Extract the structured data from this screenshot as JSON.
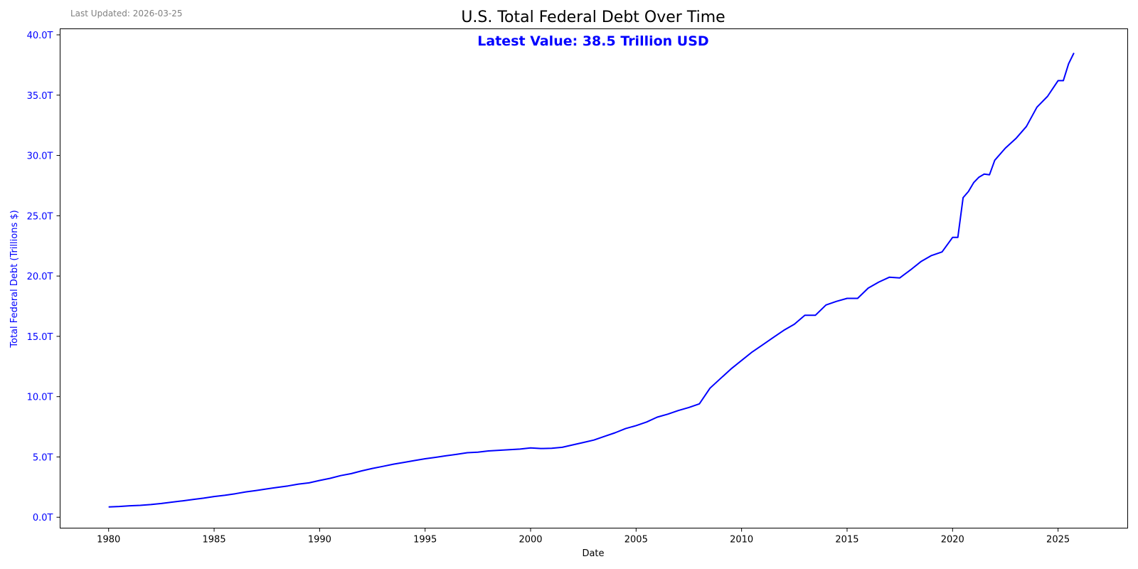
{
  "header": {
    "last_updated": "Last Updated: 2026-03-25"
  },
  "chart_data": {
    "type": "line",
    "title": "U.S. Total Federal Debt Over Time",
    "annotation": "Latest Value: 38.5 Trillion USD",
    "xlabel": "Date",
    "ylabel": "Total Federal Debt (Trillions $)",
    "x_ticks": [
      "1980",
      "1985",
      "1990",
      "1995",
      "2000",
      "2005",
      "2010",
      "2015",
      "2020",
      "2025"
    ],
    "y_ticks": [
      "0.0T",
      "5.0T",
      "10.0T",
      "15.0T",
      "20.0T",
      "25.0T",
      "30.0T",
      "35.0T",
      "40.0T"
    ],
    "xlim": [
      1977.7,
      2028.3
    ],
    "ylim": [
      -0.9,
      40.5
    ],
    "grid": false,
    "line_color": "#0000ff",
    "accent_color": "#0000ff",
    "series": [
      {
        "x": [
          1980.0,
          1980.5,
          1981.0,
          1981.5,
          1982.0,
          1982.5,
          1983.0,
          1983.5,
          1984.0,
          1984.5,
          1985.0,
          1985.5,
          1986.0,
          1986.5,
          1987.0,
          1987.5,
          1988.0,
          1988.5,
          1989.0,
          1989.5,
          1990.0,
          1990.5,
          1991.0,
          1991.5,
          1992.0,
          1992.5,
          1993.0,
          1993.5,
          1994.0,
          1994.5,
          1995.0,
          1995.5,
          1996.0,
          1996.5,
          1997.0,
          1997.5,
          1998.0,
          1998.5,
          1999.0,
          1999.5,
          2000.0,
          2000.5,
          2001.0,
          2001.5,
          2002.0,
          2002.5,
          2003.0,
          2003.5,
          2004.0,
          2004.5,
          2005.0,
          2005.5,
          2006.0,
          2006.5,
          2007.0,
          2007.5,
          2008.0,
          2008.5,
          2009.0,
          2009.5,
          2010.0,
          2010.5,
          2011.0,
          2011.5,
          2012.0,
          2012.5,
          2013.0,
          2013.5,
          2014.0,
          2014.5,
          2015.0,
          2015.5,
          2016.0,
          2016.5,
          2017.0,
          2017.5,
          2018.0,
          2018.5,
          2019.0,
          2019.5,
          2020.0,
          2020.25,
          2020.5,
          2020.75,
          2021.0,
          2021.25,
          2021.5,
          2021.75,
          2022.0,
          2022.5,
          2023.0,
          2023.5,
          2024.0,
          2024.5,
          2025.0,
          2025.25,
          2025.5,
          2025.75
        ],
        "y": [
          0.86,
          0.89,
          0.95,
          0.99,
          1.05,
          1.14,
          1.25,
          1.36,
          1.47,
          1.58,
          1.72,
          1.82,
          1.95,
          2.1,
          2.22,
          2.35,
          2.48,
          2.6,
          2.75,
          2.85,
          3.05,
          3.23,
          3.45,
          3.62,
          3.85,
          4.05,
          4.22,
          4.4,
          4.55,
          4.7,
          4.85,
          4.97,
          5.1,
          5.22,
          5.35,
          5.4,
          5.5,
          5.55,
          5.6,
          5.65,
          5.75,
          5.7,
          5.72,
          5.8,
          6.0,
          6.2,
          6.4,
          6.7,
          7.0,
          7.35,
          7.6,
          7.9,
          8.3,
          8.55,
          8.85,
          9.1,
          9.4,
          10.7,
          11.5,
          12.3,
          13.0,
          13.7,
          14.3,
          14.9,
          15.5,
          16.0,
          16.75,
          16.75,
          17.6,
          17.9,
          18.15,
          18.15,
          19.0,
          19.5,
          19.9,
          19.85,
          20.5,
          21.2,
          21.7,
          22.0,
          23.2,
          23.2,
          26.5,
          27.0,
          27.75,
          28.2,
          28.45,
          28.4,
          29.6,
          30.6,
          31.4,
          32.4,
          34.0,
          34.9,
          36.2,
          36.2,
          37.6,
          38.5
        ]
      }
    ]
  }
}
